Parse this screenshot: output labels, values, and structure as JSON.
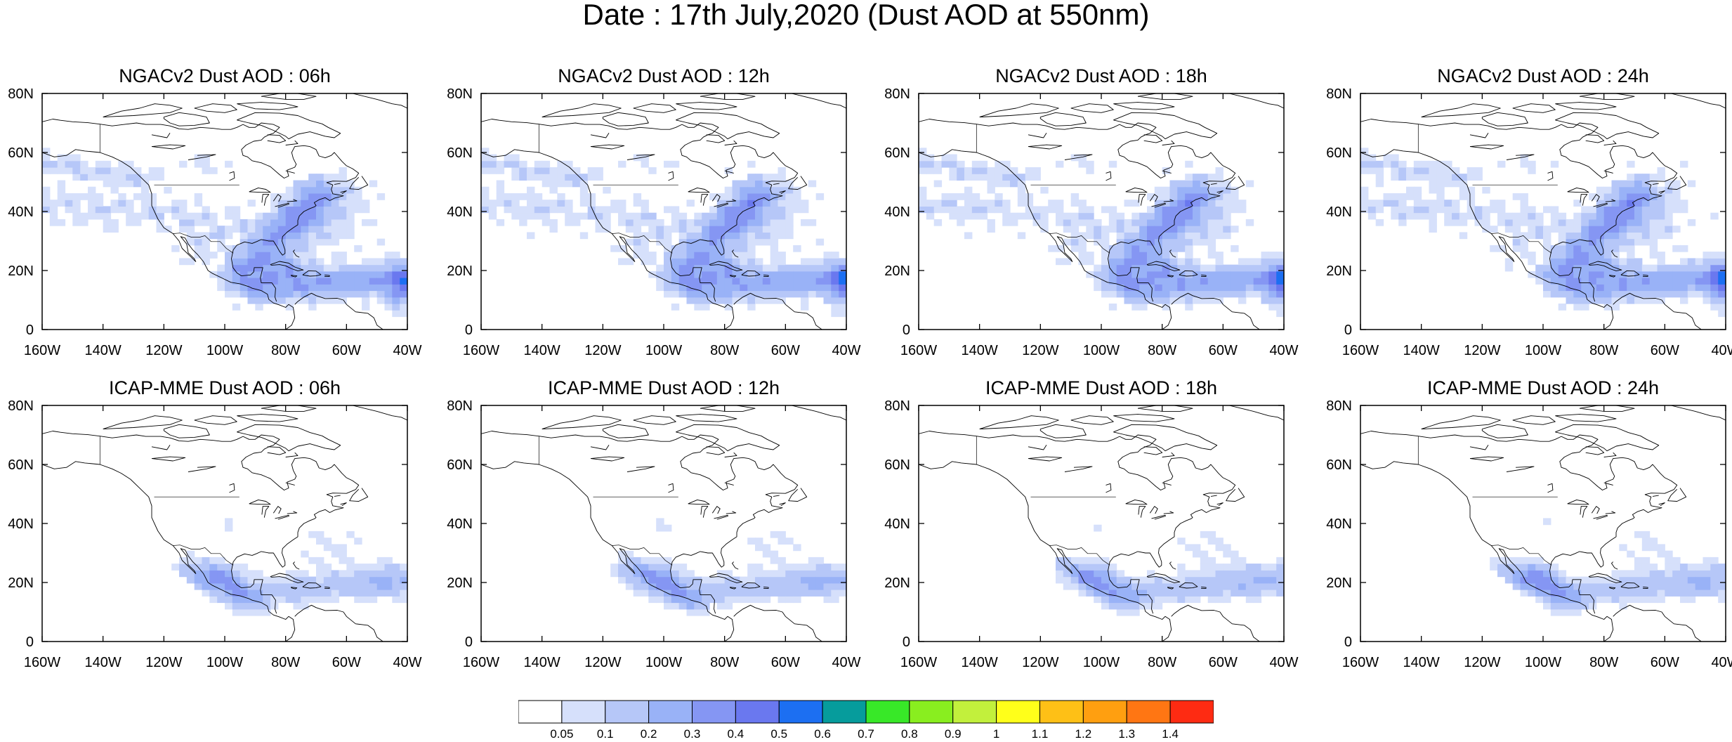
{
  "title": "Date : 17th July,2020 (Dust AOD at 550nm)",
  "map": {
    "lon_range": [
      -160,
      -40
    ],
    "lat_range": [
      0,
      80
    ],
    "x_ticks": [
      "160W",
      "140W",
      "120W",
      "100W",
      "80W",
      "60W",
      "40W"
    ],
    "y_ticks": [
      "0",
      "20N",
      "40N",
      "60N",
      "80N"
    ]
  },
  "panels": [
    {
      "title": "NGACv2 Dust AOD : 06h",
      "model": "NGACv2",
      "hour": 6
    },
    {
      "title": "NGACv2 Dust AOD : 12h",
      "model": "NGACv2",
      "hour": 12
    },
    {
      "title": "NGACv2 Dust AOD : 18h",
      "model": "NGACv2",
      "hour": 18
    },
    {
      "title": "NGACv2 Dust AOD : 24h",
      "model": "NGACv2",
      "hour": 24
    },
    {
      "title": "ICAP-MME Dust AOD : 06h",
      "model": "ICAP-MME",
      "hour": 6
    },
    {
      "title": "ICAP-MME Dust AOD : 12h",
      "model": "ICAP-MME",
      "hour": 12
    },
    {
      "title": "ICAP-MME Dust AOD : 18h",
      "model": "ICAP-MME",
      "hour": 18
    },
    {
      "title": "ICAP-MME Dust AOD : 24h",
      "model": "ICAP-MME",
      "hour": 24
    }
  ],
  "colorbar": {
    "labels": [
      "0.05",
      "0.1",
      "0.2",
      "0.3",
      "0.4",
      "0.5",
      "0.6",
      "0.7",
      "0.8",
      "0.9",
      "1",
      "1.1",
      "1.2",
      "1.3",
      "1.4"
    ],
    "colors": [
      "#ffffff",
      "#d6e0fb",
      "#b6c7f8",
      "#99b2f7",
      "#8596f3",
      "#6a78ef",
      "#1c6ff2",
      "#069c9c",
      "#38e828",
      "#89ee1f",
      "#c2f03c",
      "#ffff1a",
      "#fec016",
      "#ff9f10",
      "#ff7613",
      "#fe2b12"
    ]
  }
}
